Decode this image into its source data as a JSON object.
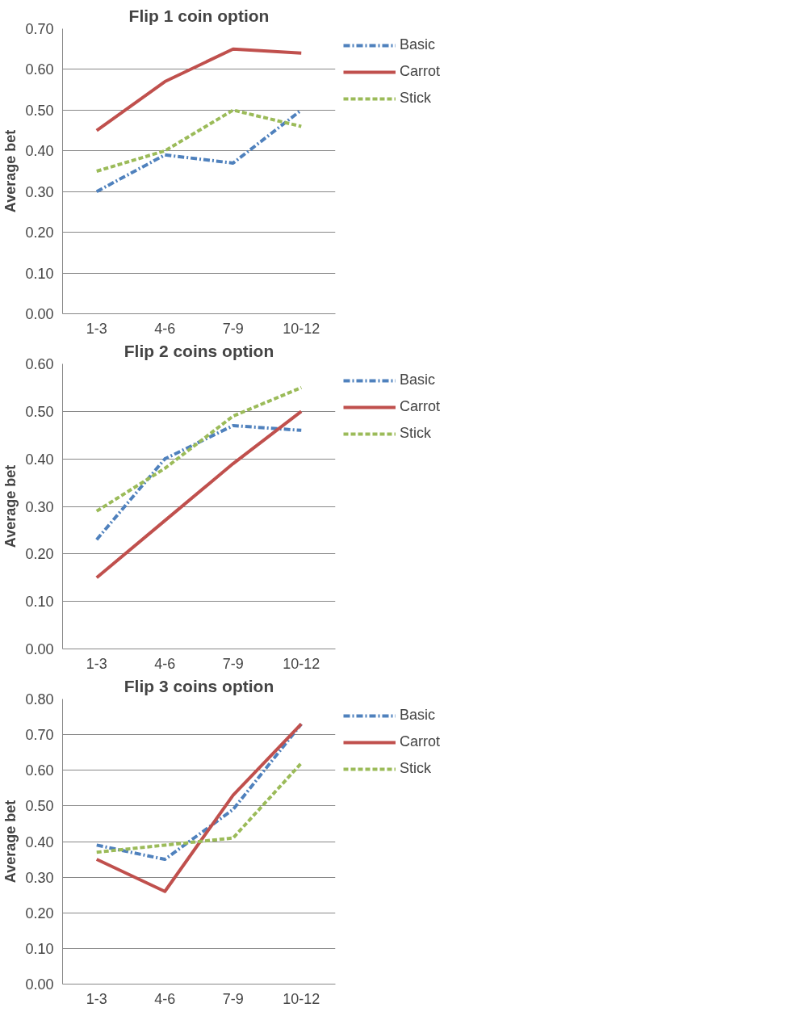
{
  "chart_data": [
    {
      "type": "line",
      "title": "Flip 1 coin option",
      "ylabel": "Average bet",
      "categories": [
        "1-3",
        "4-6",
        "7-9",
        "10-12"
      ],
      "ylim": [
        0,
        0.7
      ],
      "yticks": [
        {
          "value": 0,
          "label": "0.00"
        },
        {
          "value": 0.1,
          "label": "0.10"
        },
        {
          "value": 0.2,
          "label": "0.20"
        },
        {
          "value": 0.3,
          "label": "0.30"
        },
        {
          "value": 0.4,
          "label": "0.40"
        },
        {
          "value": 0.5,
          "label": "0.50"
        },
        {
          "value": 0.6,
          "label": "0.60"
        },
        {
          "value": 0.7,
          "label": "0.70"
        }
      ],
      "grid": "y",
      "legend": "right",
      "marker": "none",
      "series": [
        {
          "name": "Basic",
          "color": "#4f81bd",
          "line_style": "dotted",
          "values": [
            0.3,
            0.39,
            0.37,
            0.5
          ]
        },
        {
          "name": "Carrot",
          "color": "#c0504d",
          "line_style": "solid",
          "values": [
            0.45,
            0.57,
            0.65,
            0.64
          ]
        },
        {
          "name": "Stick",
          "color": "#9bbb59",
          "line_style": "dashed",
          "values": [
            0.35,
            0.4,
            0.5,
            0.46
          ]
        }
      ]
    },
    {
      "type": "line",
      "title": "Flip 2 coins option",
      "ylabel": "Average bet",
      "categories": [
        "1-3",
        "4-6",
        "7-9",
        "10-12"
      ],
      "ylim": [
        0,
        0.6
      ],
      "yticks": [
        {
          "value": 0,
          "label": "0.00"
        },
        {
          "value": 0.1,
          "label": "0.10"
        },
        {
          "value": 0.2,
          "label": "0.20"
        },
        {
          "value": 0.3,
          "label": "0.30"
        },
        {
          "value": 0.4,
          "label": "0.40"
        },
        {
          "value": 0.5,
          "label": "0.50"
        },
        {
          "value": 0.6,
          "label": "0.60"
        }
      ],
      "grid": "y",
      "legend": "right",
      "marker": "none",
      "series": [
        {
          "name": "Basic",
          "color": "#4f81bd",
          "line_style": "dotted",
          "values": [
            0.23,
            0.4,
            0.47,
            0.46
          ]
        },
        {
          "name": "Carrot",
          "color": "#c0504d",
          "line_style": "solid",
          "values": [
            0.15,
            0.27,
            0.39,
            0.5
          ]
        },
        {
          "name": "Stick",
          "color": "#9bbb59",
          "line_style": "dashed",
          "values": [
            0.29,
            0.38,
            0.49,
            0.55
          ]
        }
      ]
    },
    {
      "type": "line",
      "title": "Flip 3 coins option",
      "ylabel": "Average bet",
      "categories": [
        "1-3",
        "4-6",
        "7-9",
        "10-12"
      ],
      "ylim": [
        0,
        0.8
      ],
      "yticks": [
        {
          "value": 0,
          "label": "0.00"
        },
        {
          "value": 0.1,
          "label": "0.10"
        },
        {
          "value": 0.2,
          "label": "0.20"
        },
        {
          "value": 0.3,
          "label": "0.30"
        },
        {
          "value": 0.4,
          "label": "0.40"
        },
        {
          "value": 0.5,
          "label": "0.50"
        },
        {
          "value": 0.6,
          "label": "0.60"
        },
        {
          "value": 0.7,
          "label": "0.70"
        },
        {
          "value": 0.8,
          "label": "0.80"
        }
      ],
      "grid": "y",
      "legend": "right",
      "marker": "none",
      "series": [
        {
          "name": "Basic",
          "color": "#4f81bd",
          "line_style": "dotted",
          "values": [
            0.39,
            0.35,
            0.49,
            0.73
          ]
        },
        {
          "name": "Carrot",
          "color": "#c0504d",
          "line_style": "solid",
          "values": [
            0.35,
            0.26,
            0.53,
            0.73
          ]
        },
        {
          "name": "Stick",
          "color": "#9bbb59",
          "line_style": "dashed",
          "values": [
            0.37,
            0.39,
            0.41,
            0.62
          ]
        }
      ]
    }
  ]
}
